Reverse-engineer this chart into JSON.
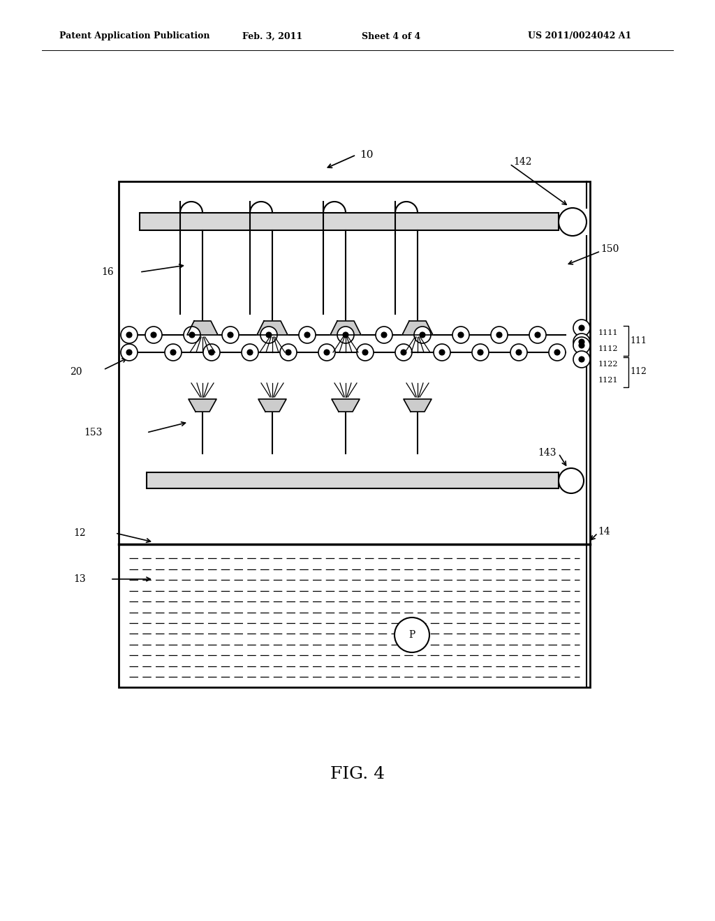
{
  "bg_color": "#ffffff",
  "line_color": "#000000",
  "title_header": "Patent Application Publication",
  "date_header": "Feb. 3, 2011",
  "sheet_header": "Sheet 4 of 4",
  "patent_header": "US 2011/0024042 A1",
  "fig_label": "FIG. 4"
}
